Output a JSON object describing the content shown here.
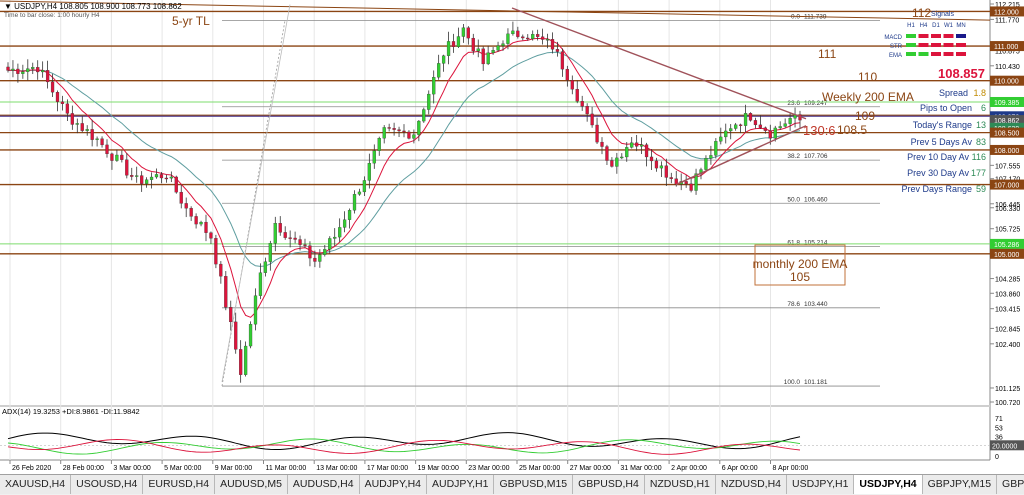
{
  "header": {
    "title": "▼ USDJPY,H4  108.805 108.900 108.773 108.862",
    "subtitle": "Time to bar close: 1:00 hourly H4"
  },
  "annotations": {
    "trendline_label": "5-yr TL",
    "weekly_ema": "Weekly 200 EMA",
    "monthly_ema_line1": "monthly 200 EMA",
    "monthly_ema_line2": "105",
    "triangle_label": "130:6",
    "level_112": "112",
    "level_111": "111",
    "level_110": "110",
    "level_109": "109",
    "level_1085": "108.5"
  },
  "info_panel": {
    "price": "108.857",
    "signals_title": "Signals",
    "timeframes": [
      "H1",
      "H4",
      "D1",
      "W1",
      "MN"
    ],
    "indicators": [
      "MACD",
      "STR",
      "EMA"
    ],
    "spread_label": "Spread",
    "spread_value": "1.8",
    "pips_label": "Pips to Open",
    "pips_value": "6",
    "range_label": "Today's Range",
    "range_value": "13",
    "prev5_label": "Prev 5 Days Av",
    "prev5_value": "83",
    "prev10_label": "Prev 10 Day Av",
    "prev10_value": "116",
    "prev30_label": "Prev 30 Day Av",
    "prev30_value": "177",
    "prevdays_label": "Prev Days Range",
    "prevdays_value": "59"
  },
  "fib_labels": [
    {
      "ratio": "0.0",
      "price": "111.739"
    },
    {
      "ratio": "23.6",
      "price": "109.247"
    },
    {
      "ratio": "38.2",
      "price": "107.706"
    },
    {
      "ratio": "50.0",
      "price": "106.460"
    },
    {
      "ratio": "61.8",
      "price": "105.214"
    },
    {
      "ratio": "78.6",
      "price": "103.440"
    },
    {
      "ratio": "100.0",
      "price": "101.181"
    }
  ],
  "price_axis": [
    "112.215",
    "111.770",
    "111.000",
    "110.875",
    "110.430",
    "110.000",
    "109.385",
    "108.972",
    "108.639",
    "108.500",
    "108.000",
    "107.555",
    "107.170",
    "107.000",
    "106.445",
    "106.330",
    "105.725",
    "105.286",
    "105.000",
    "104.285",
    "103.860",
    "103.415",
    "102.845",
    "102.400",
    "101.125",
    "100.720"
  ],
  "price_badges": [
    {
      "label": "112.000",
      "value": 112.0,
      "color": "#8b4513"
    },
    {
      "label": "111.000",
      "value": 111.0,
      "color": "#8b4513"
    },
    {
      "label": "110.000",
      "value": 110.0,
      "color": "#8b4513"
    },
    {
      "label": "109.385",
      "value": 109.385,
      "color": "#32cd32"
    },
    {
      "label": "108.972",
      "value": 108.972,
      "color": "#1e3a8a"
    },
    {
      "label": "108.862",
      "value": 108.862,
      "color": "#555555"
    },
    {
      "label": "108.639",
      "value": 108.639,
      "color": "#2e8b57"
    },
    {
      "label": "108.500",
      "value": 108.5,
      "color": "#8b4513"
    },
    {
      "label": "108.000",
      "value": 108.0,
      "color": "#8b4513"
    },
    {
      "label": "107.000",
      "value": 107.0,
      "color": "#8b4513"
    },
    {
      "label": "105.286",
      "value": 105.286,
      "color": "#32cd32"
    },
    {
      "label": "105.000",
      "value": 105.0,
      "color": "#8b4513"
    }
  ],
  "time_axis": [
    "26 Feb 2020",
    "28 Feb 00:00",
    "3 Mar 00:00",
    "5 Mar 00:00",
    "9 Mar 00:00",
    "11 Mar 00:00",
    "13 Mar 00:00",
    "17 Mar 00:00",
    "19 Mar 00:00",
    "23 Mar 00:00",
    "25 Mar 00:00",
    "27 Mar 00:00",
    "31 Mar 00:00",
    "2 Apr 00:00",
    "6 Apr 00:00",
    "8 Apr 00:00"
  ],
  "adx_panel": {
    "label": "ADX(14) 19.3253 +DI:8.9861 -DI:11.9842",
    "axis": [
      "71",
      "53",
      "36",
      "20.0000",
      "0"
    ]
  },
  "tabs": [
    "XAUUSD,H4",
    "USOUSD,H4",
    "EURUSD,H4",
    "AUDUSD,M5",
    "AUDUSD,H4",
    "AUDJPY,H4",
    "AUDJPY,H1",
    "GBPUSD,M15",
    "GBPUSD,H4",
    "NZDUSD,H1",
    "NZDUSD,H4",
    "USDJPY,H1",
    "USDJPY,H4",
    "GBPJPY,M15",
    "GBPJPY,H4",
    "WS30,M15",
    "DAX30,M1"
  ],
  "active_tab": "USDJPY,H4",
  "colors": {
    "bull": "#32cd32",
    "bear": "#dc143c",
    "ema_fast": "#dc143c",
    "ema_slow": "#5f9ea0",
    "sr_line": "#8b4513",
    "trendline": "#a0525a",
    "fib": "#8a8a8a",
    "adx": "#000000",
    "plus_di": "#32cd32",
    "minus_di": "#dc143c"
  },
  "chart_data": {
    "type": "candlestick",
    "symbol": "USDJPY",
    "timeframe": "H4",
    "x_range": [
      "26 Feb 2020",
      "8 Apr 2020"
    ],
    "ylim": [
      100.72,
      112.215
    ],
    "last": 108.862,
    "waypoints": [
      {
        "bar": 0,
        "price": 110.3
      },
      {
        "bar": 6,
        "price": 110.4
      },
      {
        "bar": 12,
        "price": 109.0
      },
      {
        "bar": 18,
        "price": 108.3
      },
      {
        "bar": 26,
        "price": 107.1
      },
      {
        "bar": 32,
        "price": 107.3
      },
      {
        "bar": 36,
        "price": 106.3
      },
      {
        "bar": 41,
        "price": 105.5
      },
      {
        "bar": 47,
        "price": 101.6
      },
      {
        "bar": 51,
        "price": 104.4
      },
      {
        "bar": 54,
        "price": 105.9
      },
      {
        "bar": 62,
        "price": 104.8
      },
      {
        "bar": 66,
        "price": 105.5
      },
      {
        "bar": 72,
        "price": 107.2
      },
      {
        "bar": 76,
        "price": 108.5
      },
      {
        "bar": 82,
        "price": 108.5
      },
      {
        "bar": 88,
        "price": 110.8
      },
      {
        "bar": 92,
        "price": 111.5
      },
      {
        "bar": 96,
        "price": 110.5
      },
      {
        "bar": 100,
        "price": 111.2
      },
      {
        "bar": 104,
        "price": 111.4
      },
      {
        "bar": 110,
        "price": 111.0
      },
      {
        "bar": 114,
        "price": 109.9
      },
      {
        "bar": 118,
        "price": 108.6
      },
      {
        "bar": 122,
        "price": 107.6
      },
      {
        "bar": 126,
        "price": 108.3
      },
      {
        "bar": 130,
        "price": 107.8
      },
      {
        "bar": 134,
        "price": 107.2
      },
      {
        "bar": 138,
        "price": 107.0
      },
      {
        "bar": 142,
        "price": 107.9
      },
      {
        "bar": 146,
        "price": 108.7
      },
      {
        "bar": 150,
        "price": 109.0
      },
      {
        "bar": 154,
        "price": 108.5
      },
      {
        "bar": 158,
        "price": 108.9
      },
      {
        "bar": 160,
        "price": 108.86
      }
    ],
    "support_resistance": [
      112.0,
      111.0,
      110.0,
      109.0,
      108.5,
      108.0,
      107.0,
      105.0
    ],
    "fib_retracement": {
      "high": 111.739,
      "low": 101.181,
      "levels": [
        111.739,
        109.247,
        107.706,
        106.46,
        105.214,
        103.44,
        101.181
      ]
    },
    "trendlines": [
      {
        "name": "5-yr TL",
        "from": 112.3,
        "to": 111.75
      },
      {
        "name": "triangle upper",
        "from": 112.1,
        "to": 108.9
      },
      {
        "name": "triangle lower",
        "from": 107.0,
        "to": 108.7
      }
    ],
    "ema_levels": {
      "weekly_200": 109.0,
      "monthly_200": 105.0
    }
  }
}
